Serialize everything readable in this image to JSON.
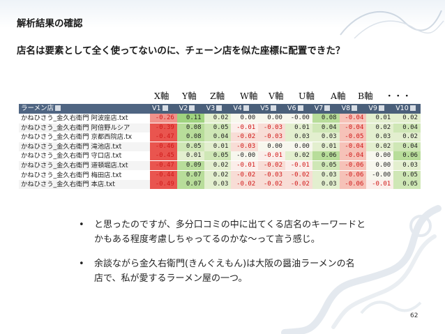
{
  "slide": {
    "title": "解析結果の確認",
    "subtitle": "店名は要素として全く使ってないのに、チェーン店を似た座標に配置できた？",
    "page_number": "62"
  },
  "axis_labels": [
    "X軸",
    "Y軸",
    "Z軸",
    "W軸",
    "V軸",
    "U軸",
    "A軸",
    "B軸",
    "・・・"
  ],
  "table": {
    "header_first": "ラーメン店",
    "columns": [
      "V1",
      "V2",
      "V3",
      "V4",
      "V5",
      "V6",
      "V7",
      "V8",
      "V9",
      "V10"
    ],
    "rows": [
      {
        "name": "かねひさう_金久右衛門 阿波座店.txt",
        "values": [
          "-0.26",
          "0.11",
          "0.02",
          "0.00",
          "0.00",
          "-0.00",
          "0.08",
          "-0.04",
          "0.01",
          "0.02"
        ]
      },
      {
        "name": "かねひさう_金久右衛門 阿倍野ルシア",
        "values": [
          "-0.39",
          "0.08",
          "0.05",
          "-0.01",
          "-0.03",
          "0.01",
          "0.04",
          "-0.04",
          "0.02",
          "0.04"
        ]
      },
      {
        "name": "かねひさう_金久右衛門 京都西院店.tx",
        "values": [
          "-0.47",
          "0.08",
          "0.04",
          "-0.02",
          "-0.03",
          "0.03",
          "0.03",
          "-0.05",
          "0.03",
          "0.02"
        ]
      },
      {
        "name": "かねひさう_金久右衛門 滝池店.txt",
        "values": [
          "-0.46",
          "0.05",
          "0.01",
          "-0.03",
          "0.00",
          "0.00",
          "0.01",
          "-0.04",
          "0.02",
          "0.04"
        ]
      },
      {
        "name": "かねひさう_金久右衛門 守口店.txt",
        "values": [
          "-0.45",
          "0.01",
          "0.05",
          "-0.00",
          "-0.01",
          "0.02",
          "0.06",
          "-0.04",
          "0.00",
          "0.06"
        ]
      },
      {
        "name": "かねひさう_金久右衛門 道頓堀店.txt",
        "values": [
          "-0.47",
          "0.09",
          "0.02",
          "-0.01",
          "-0.02",
          "-0.01",
          "0.05",
          "-0.06",
          "0.00",
          "0.03"
        ]
      },
      {
        "name": "かねひさう_金久右衛門 梅田店.txt",
        "values": [
          "-0.44",
          "0.07",
          "0.02",
          "-0.02",
          "-0.03",
          "-0.02",
          "0.03",
          "-0.06",
          "-0.00",
          "0.05"
        ]
      },
      {
        "name": "かねひさう_金久右衛門 本店.txt",
        "values": [
          "-0.49",
          "0.07",
          "0.03",
          "-0.02",
          "-0.02",
          "-0.02",
          "0.03",
          "-0.06",
          "-0.01",
          "0.05"
        ]
      }
    ],
    "colors": {
      "header_bg": "#4a5f7a",
      "negative": "#e53030",
      "positive": "#40b840"
    }
  },
  "bullets": [
    "と思ったのですが、多分口コミの中に出てくる店名のキーワードと\nかもある程度考慮しちゃってるのかな〜って言う感じ。",
    "余談ながら金久右衛門(きんぐえもん)は大阪の醤油ラーメンの名\n店で、私が愛するラーメン屋の一つ。"
  ]
}
